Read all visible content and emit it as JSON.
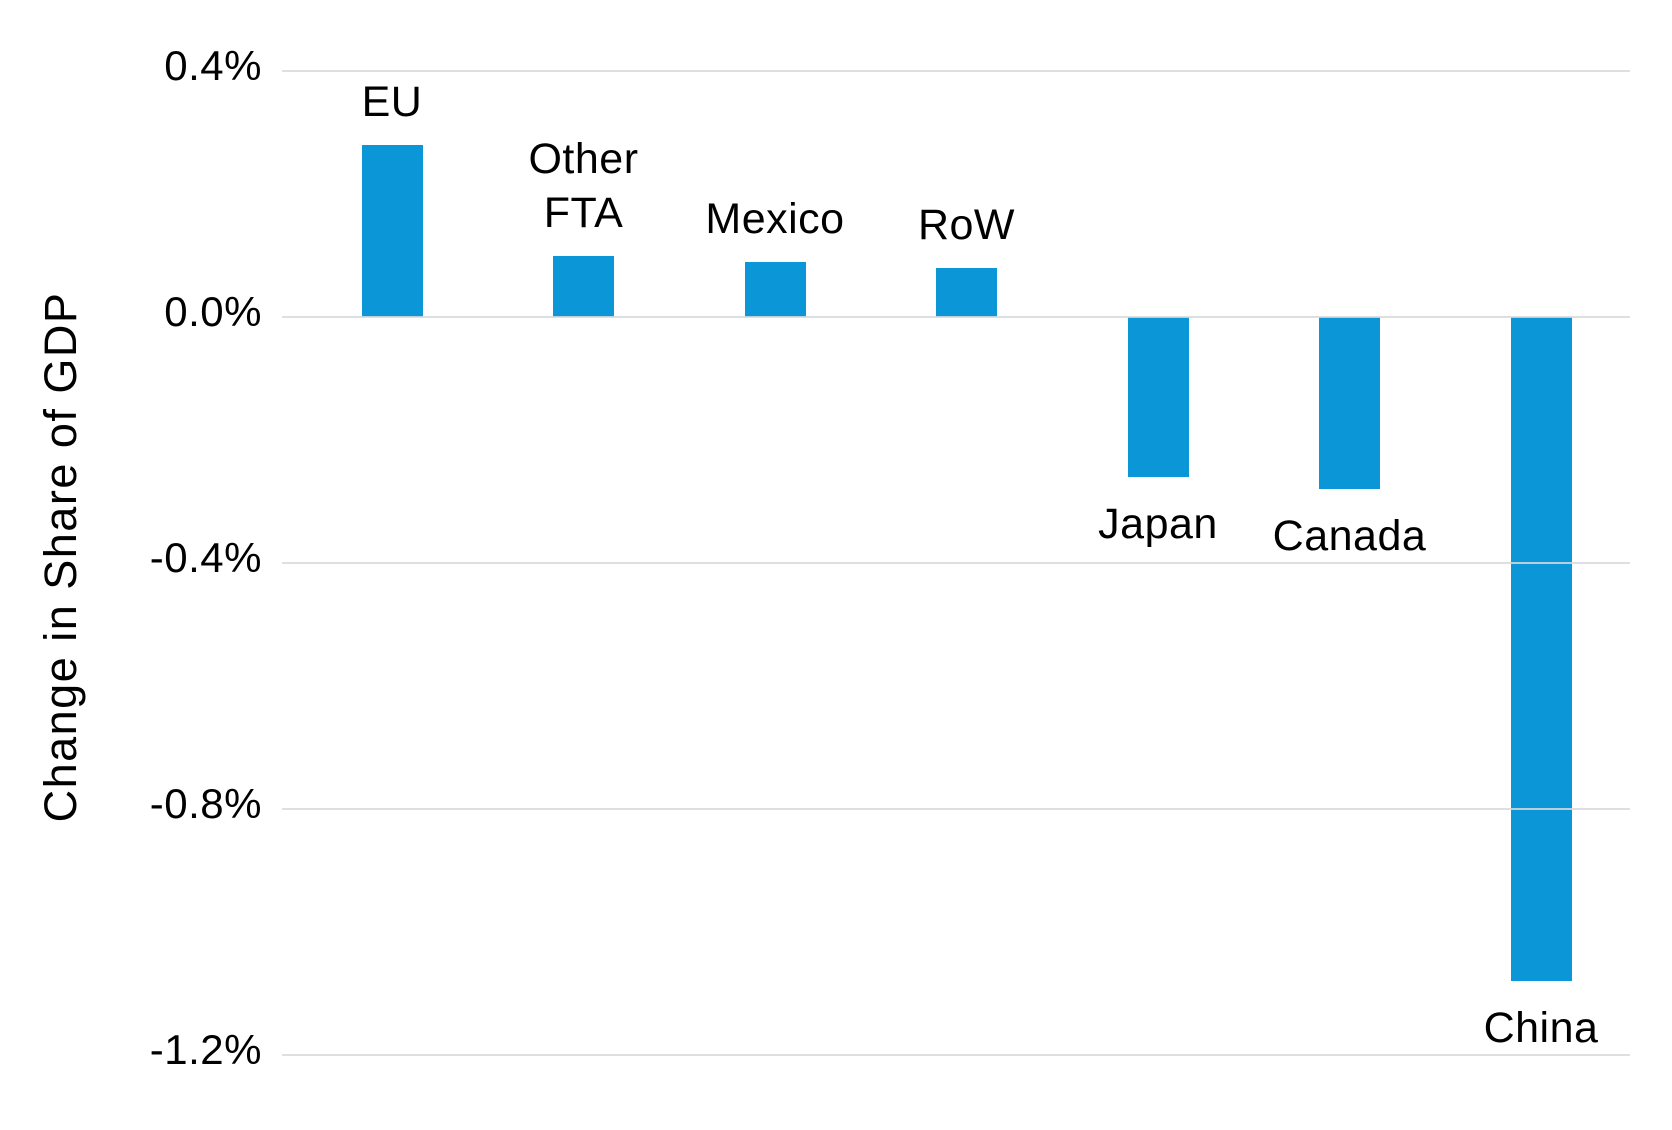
{
  "chart_data": {
    "type": "bar",
    "title": "",
    "xlabel": "",
    "ylabel": "Change in Share of GDP",
    "unit": "%",
    "categories": [
      "EU",
      "Other FTA",
      "Mexico",
      "RoW",
      "Japan",
      "Canada",
      "China"
    ],
    "values": [
      0.28,
      0.1,
      0.09,
      0.08,
      -0.26,
      -0.28,
      -1.08
    ],
    "label_lines": [
      [
        "EU"
      ],
      [
        "Other",
        "FTA"
      ],
      [
        "Mexico"
      ],
      [
        "RoW"
      ],
      [
        "Japan"
      ],
      [
        "Canada"
      ],
      [
        "China"
      ]
    ],
    "ylim": [
      -1.2,
      0.4
    ],
    "yticks": [
      {
        "label": "0.4%",
        "value": 0.4
      },
      {
        "label": "0.0%",
        "value": 0.0
      },
      {
        "label": "-0.4%",
        "value": -0.4
      },
      {
        "label": "-0.8%",
        "value": -0.8
      },
      {
        "label": "-1.2%",
        "value": -1.2
      }
    ],
    "grid": "horizontal",
    "legend": "none",
    "colors": {
      "bar": "#0B96D8",
      "gridline": "#D9D9D9",
      "text": "#000000",
      "background": "#FFFFFF"
    }
  }
}
